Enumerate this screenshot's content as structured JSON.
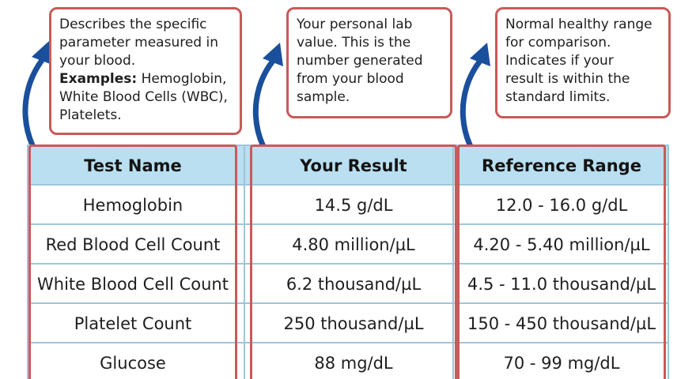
{
  "callouts": {
    "test_name": {
      "line1": "Describes the specific",
      "line2": "parameter measured in",
      "line3": "your blood.",
      "examples_label": "Examples:",
      "examples_text1": " Hemoglobin,",
      "examples_text2": "White Blood Cells (WBC),",
      "examples_text3": "Platelets."
    },
    "your_result": {
      "line1": "Your personal lab",
      "line2": "value. This is the",
      "line3": "number generated",
      "line4": "from your blood",
      "line5": "sample."
    },
    "reference_range": {
      "line1": "Normal healthy range",
      "line2": "for comparison.",
      "line3": "Indicates if your",
      "line4": "result is within the",
      "line5": "standard limits."
    }
  },
  "table": {
    "headers": [
      "Test Name",
      "Your Result",
      "Reference Range"
    ],
    "rows": [
      [
        "Hemoglobin",
        "14.5 g/dL",
        "12.0 - 16.0 g/dL"
      ],
      [
        "Red Blood Cell Count",
        "4.80 million/µL",
        "4.20 - 5.40 million/µL"
      ],
      [
        "White Blood Cell Count",
        "6.2 thousand/µL",
        "4.5 - 11.0 thousand/µL"
      ],
      [
        "Platelet Count",
        "250 thousand/µL",
        "150 - 450 thousand/µL"
      ],
      [
        "Glucose",
        "88 mg/dL",
        "70 - 99 mg/dL"
      ]
    ]
  },
  "colors": {
    "callout_border": "#c85a5a",
    "header_fill": "#b9dff0",
    "grid_line": "#9ec6d9",
    "arrow": "#1a4f9c"
  },
  "icons": [
    "curved-arrow-icon",
    "curved-arrow-icon",
    "curved-arrow-icon"
  ]
}
